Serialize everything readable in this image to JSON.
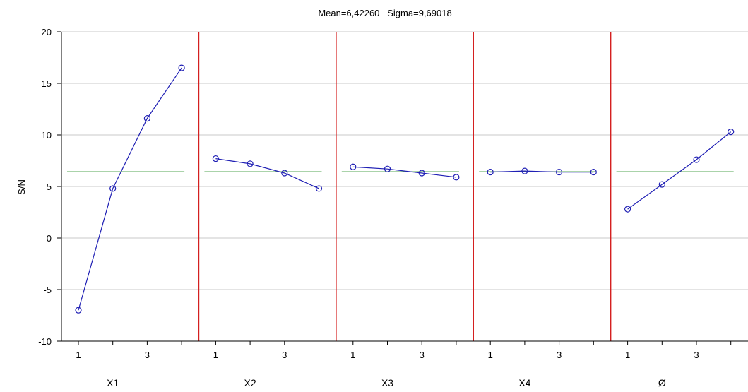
{
  "chart_data": {
    "type": "line",
    "title": "Mean=6,42260   Sigma=9,69018",
    "ylabel": "S/N",
    "ylim": [
      -10,
      20
    ],
    "yticks": [
      -10,
      -5,
      0,
      5,
      10,
      15,
      20
    ],
    "yticklabels": [
      "-10",
      "-5",
      "0",
      "5",
      "10",
      "15",
      "20"
    ],
    "grid": true,
    "mean": 6.4226,
    "levels": [
      1,
      2,
      3,
      4
    ],
    "level_tick_labels": [
      "1",
      "3"
    ],
    "level_tick_positions": [
      1,
      3
    ],
    "panels": [
      {
        "factor": "X1",
        "values": [
          -7.0,
          4.8,
          11.6,
          16.5
        ]
      },
      {
        "factor": "X2",
        "values": [
          7.7,
          7.2,
          6.3,
          4.8
        ]
      },
      {
        "factor": "X3",
        "values": [
          6.9,
          6.7,
          6.3,
          5.9
        ]
      },
      {
        "factor": "X4",
        "values": [
          6.4,
          6.5,
          6.4,
          6.4
        ]
      },
      {
        "factor": "Ø",
        "values": [
          2.8,
          5.2,
          7.6,
          10.3
        ]
      }
    ],
    "colors": {
      "series": "#1f1fb4",
      "mean_line": "#1e8a1e",
      "separator": "#d42020",
      "grid": "#c8c8c8",
      "axis": "#000000"
    }
  }
}
